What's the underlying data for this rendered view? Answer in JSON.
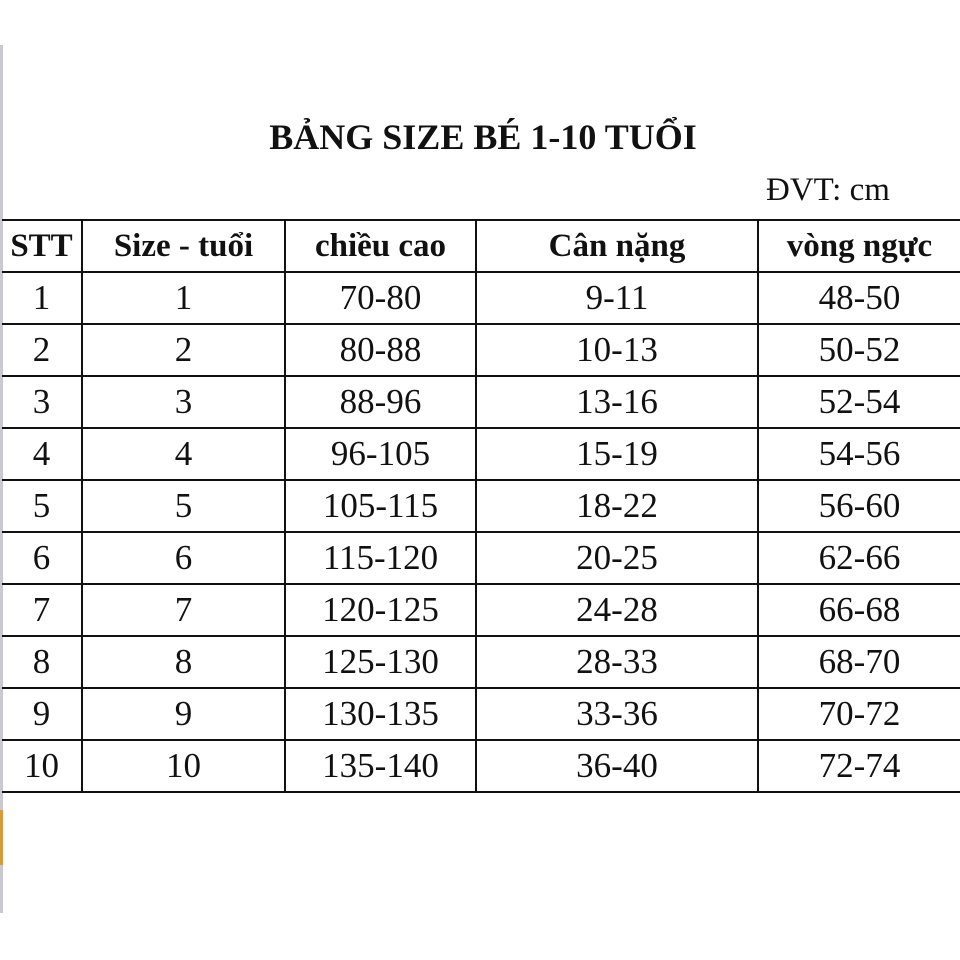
{
  "title": "BẢNG SIZE BÉ 1-10 TUỔI",
  "unit": "ĐVT: cm",
  "columns": [
    "STT",
    "Size - tuổi",
    "chiều cao",
    "Cân nặng",
    "vòng ngực"
  ],
  "rows": [
    [
      "1",
      "1",
      "70-80",
      "9-11",
      "48-50"
    ],
    [
      "2",
      "2",
      "80-88",
      "10-13",
      "50-52"
    ],
    [
      "3",
      "3",
      "88-96",
      "13-16",
      "52-54"
    ],
    [
      "4",
      "4",
      "96-105",
      "15-19",
      "54-56"
    ],
    [
      "5",
      "5",
      "105-115",
      "18-22",
      "56-60"
    ],
    [
      "6",
      "6",
      "115-120",
      "20-25",
      "62-66"
    ],
    [
      "7",
      "7",
      "120-125",
      "24-28",
      "66-68"
    ],
    [
      "8",
      "8",
      "125-130",
      "28-33",
      "68-70"
    ],
    [
      "9",
      "9",
      "130-135",
      "33-36",
      "70-72"
    ],
    [
      "10",
      "10",
      "135-140",
      "36-40",
      "72-74"
    ]
  ]
}
